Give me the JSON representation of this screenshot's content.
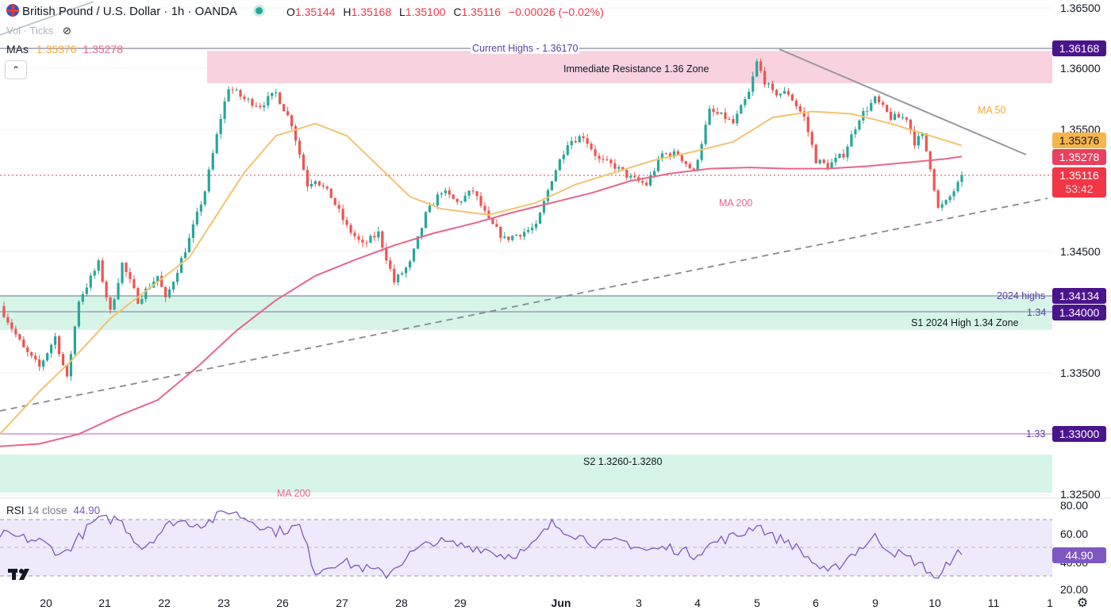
{
  "header": {
    "symbol": "British Pound / U.S. Dollar · 1h · OANDA",
    "o_label": "O",
    "o": "1.35144",
    "h_label": "H",
    "h": "1.35168",
    "l_label": "L",
    "l": "1.35100",
    "c_label": "C",
    "c": "1.35116",
    "change": "−0.00026 (−0.02%)",
    "vol": "Vol · Ticks",
    "mas_label": "MAs",
    "ma50_value": "1.35376",
    "ma200_value": "1.35278",
    "collapse_icon": "chevron-up-icon"
  },
  "colors": {
    "up": "#26a69a",
    "down": "#ef5350",
    "ma50": "#f2c46e",
    "ma200": "#e8658a",
    "rsi": "#7e57c2",
    "resistance_zone": "#f8d2df",
    "support_zone": "#d7f4e8",
    "purple_badge": "#4a148c",
    "current_price": "#f23645"
  },
  "annotations": {
    "current_highs": "Current Highs - 1.36170",
    "resistance_zone": "Immediate Resistance 1.36 Zone",
    "ma50_label": "MA 50",
    "ma200_label": "MA 200",
    "ma200_label_bottom": "MA 200",
    "highs_2024": "2024 highs",
    "level_134": "1.34",
    "s1_zone": "S1 2024 High 1.34 Zone",
    "level_133": "1.33",
    "s2_zone": "S2 1.3260-1.3280"
  },
  "price_axis": {
    "ticks": [
      "1.36500",
      "1.36000",
      "1.35500",
      "1.34500",
      "1.33500",
      "1.32500"
    ],
    "badges": {
      "high": "1.36168",
      "ma50": "1.35376",
      "ma200": "1.35278",
      "current": "1.35116",
      "countdown": "53:42",
      "highs_2024": "1.34134",
      "level_134": "1.34000",
      "level_133": "1.33000"
    }
  },
  "time_axis": [
    "20",
    "21",
    "22",
    "23",
    "26",
    "27",
    "28",
    "29",
    "Jun",
    "3",
    "4",
    "5",
    "6",
    "9",
    "10",
    "11",
    "1"
  ],
  "rsi": {
    "label": "RSI",
    "params": "14 close",
    "value": "44.90",
    "ticks": [
      "80.00",
      "60.00",
      "40.00",
      "20.00"
    ],
    "badge": "44.90"
  },
  "chart_data": [
    {
      "type": "candlestick",
      "title": "British Pound / U.S. Dollar · 1h · OANDA",
      "ylim": [
        1.3245,
        1.3655
      ],
      "close_path": [
        [
          0,
          1.3405
        ],
        [
          6,
          1.337
        ],
        [
          10,
          1.3355
        ],
        [
          14,
          1.338
        ],
        [
          17,
          1.3345
        ],
        [
          20,
          1.341
        ],
        [
          25,
          1.344
        ],
        [
          28,
          1.34
        ],
        [
          31,
          1.344
        ],
        [
          35,
          1.341
        ],
        [
          40,
          1.343
        ],
        [
          42,
          1.341
        ],
        [
          48,
          1.346
        ],
        [
          52,
          1.35
        ],
        [
          56,
          1.356
        ],
        [
          58,
          1.3585
        ],
        [
          62,
          1.3575
        ],
        [
          66,
          1.357
        ],
        [
          70,
          1.358
        ],
        [
          74,
          1.3555
        ],
        [
          78,
          1.3505
        ],
        [
          80,
          1.351
        ],
        [
          84,
          1.3495
        ],
        [
          88,
          1.347
        ],
        [
          92,
          1.3455
        ],
        [
          96,
          1.3465
        ],
        [
          100,
          1.3425
        ],
        [
          104,
          1.344
        ],
        [
          108,
          1.348
        ],
        [
          112,
          1.35
        ],
        [
          116,
          1.349
        ],
        [
          120,
          1.35
        ],
        [
          124,
          1.3475
        ],
        [
          128,
          1.346
        ],
        [
          132,
          1.3465
        ],
        [
          136,
          1.347
        ],
        [
          140,
          1.351
        ],
        [
          144,
          1.354
        ],
        [
          148,
          1.3545
        ],
        [
          152,
          1.3525
        ],
        [
          156,
          1.352
        ],
        [
          160,
          1.351
        ],
        [
          164,
          1.3505
        ],
        [
          168,
          1.353
        ],
        [
          172,
          1.353
        ],
        [
          176,
          1.3515
        ],
        [
          180,
          1.3565
        ],
        [
          184,
          1.356
        ],
        [
          186,
          1.3555
        ],
        [
          190,
          1.358
        ],
        [
          192,
          1.3605
        ],
        [
          194,
          1.359
        ],
        [
          196,
          1.358
        ],
        [
          200,
          1.358
        ],
        [
          204,
          1.356
        ],
        [
          207,
          1.3525
        ],
        [
          210,
          1.352
        ],
        [
          214,
          1.353
        ],
        [
          218,
          1.356
        ],
        [
          222,
          1.3575
        ],
        [
          226,
          1.356
        ],
        [
          230,
          1.356
        ],
        [
          232,
          1.354
        ],
        [
          234,
          1.3545
        ],
        [
          236,
          1.352
        ],
        [
          238,
          1.3485
        ],
        [
          240,
          1.349
        ],
        [
          242,
          1.35
        ],
        [
          244,
          1.351
        ]
      ],
      "ma50_path": [
        [
          0,
          1.33
        ],
        [
          10,
          1.3335
        ],
        [
          18,
          1.336
        ],
        [
          28,
          1.3395
        ],
        [
          38,
          1.342
        ],
        [
          48,
          1.3445
        ],
        [
          55,
          1.348
        ],
        [
          62,
          1.3515
        ],
        [
          70,
          1.3545
        ],
        [
          80,
          1.3555
        ],
        [
          88,
          1.3545
        ],
        [
          96,
          1.352
        ],
        [
          104,
          1.3495
        ],
        [
          112,
          1.3485
        ],
        [
          124,
          1.348
        ],
        [
          136,
          1.349
        ],
        [
          146,
          1.3505
        ],
        [
          156,
          1.3515
        ],
        [
          166,
          1.3525
        ],
        [
          176,
          1.3532
        ],
        [
          186,
          1.354
        ],
        [
          196,
          1.356
        ],
        [
          206,
          1.3565
        ],
        [
          216,
          1.3563
        ],
        [
          226,
          1.3555
        ],
        [
          236,
          1.3545
        ],
        [
          244,
          1.3537
        ]
      ],
      "ma200_path": [
        [
          0,
          1.329
        ],
        [
          10,
          1.3292
        ],
        [
          20,
          1.33
        ],
        [
          30,
          1.3315
        ],
        [
          40,
          1.3328
        ],
        [
          50,
          1.3355
        ],
        [
          60,
          1.3385
        ],
        [
          70,
          1.341
        ],
        [
          80,
          1.343
        ],
        [
          90,
          1.3443
        ],
        [
          100,
          1.3455
        ],
        [
          110,
          1.3465
        ],
        [
          120,
          1.3473
        ],
        [
          130,
          1.3482
        ],
        [
          140,
          1.349
        ],
        [
          150,
          1.3498
        ],
        [
          160,
          1.3508
        ],
        [
          170,
          1.3514
        ],
        [
          180,
          1.3518
        ],
        [
          190,
          1.3519
        ],
        [
          200,
          1.3518
        ],
        [
          210,
          1.3518
        ],
        [
          220,
          1.352
        ],
        [
          230,
          1.3523
        ],
        [
          240,
          1.3526
        ],
        [
          244,
          1.3528
        ]
      ],
      "horizontal_levels": [
        1.3617,
        1.34134,
        1.34,
        1.33
      ],
      "zones": [
        {
          "name": "Immediate Resistance 1.36 Zone",
          "low": 1.3588,
          "high": 1.3614
        },
        {
          "name": "S1 2024 High 1.34 Zone",
          "low": 1.3385,
          "high": 1.3414
        },
        {
          "name": "S2 1.3260-1.3280",
          "low": 1.3255,
          "high": 1.3285
        }
      ]
    },
    {
      "type": "line",
      "title": "RSI 14 close",
      "ylim": [
        20,
        80
      ],
      "levels": [
        70,
        50,
        30
      ],
      "path": [
        [
          0,
          60
        ],
        [
          10,
          55
        ],
        [
          16,
          45
        ],
        [
          24,
          70
        ],
        [
          30,
          72
        ],
        [
          36,
          50
        ],
        [
          44,
          70
        ],
        [
          52,
          68
        ],
        [
          58,
          78
        ],
        [
          64,
          70
        ],
        [
          70,
          62
        ],
        [
          76,
          66
        ],
        [
          80,
          32
        ],
        [
          86,
          40
        ],
        [
          92,
          35
        ],
        [
          98,
          30
        ],
        [
          104,
          45
        ],
        [
          110,
          55
        ],
        [
          116,
          52
        ],
        [
          122,
          50
        ],
        [
          128,
          44
        ],
        [
          134,
          48
        ],
        [
          140,
          68
        ],
        [
          146,
          60
        ],
        [
          152,
          52
        ],
        [
          158,
          55
        ],
        [
          164,
          48
        ],
        [
          170,
          50
        ],
        [
          176,
          45
        ],
        [
          182,
          55
        ],
        [
          188,
          60
        ],
        [
          192,
          68
        ],
        [
          196,
          58
        ],
        [
          200,
          55
        ],
        [
          206,
          40
        ],
        [
          210,
          30
        ],
        [
          216,
          45
        ],
        [
          222,
          58
        ],
        [
          226,
          48
        ],
        [
          232,
          40
        ],
        [
          236,
          32
        ],
        [
          238,
          25
        ],
        [
          242,
          46
        ],
        [
          244,
          44.9
        ]
      ]
    }
  ]
}
